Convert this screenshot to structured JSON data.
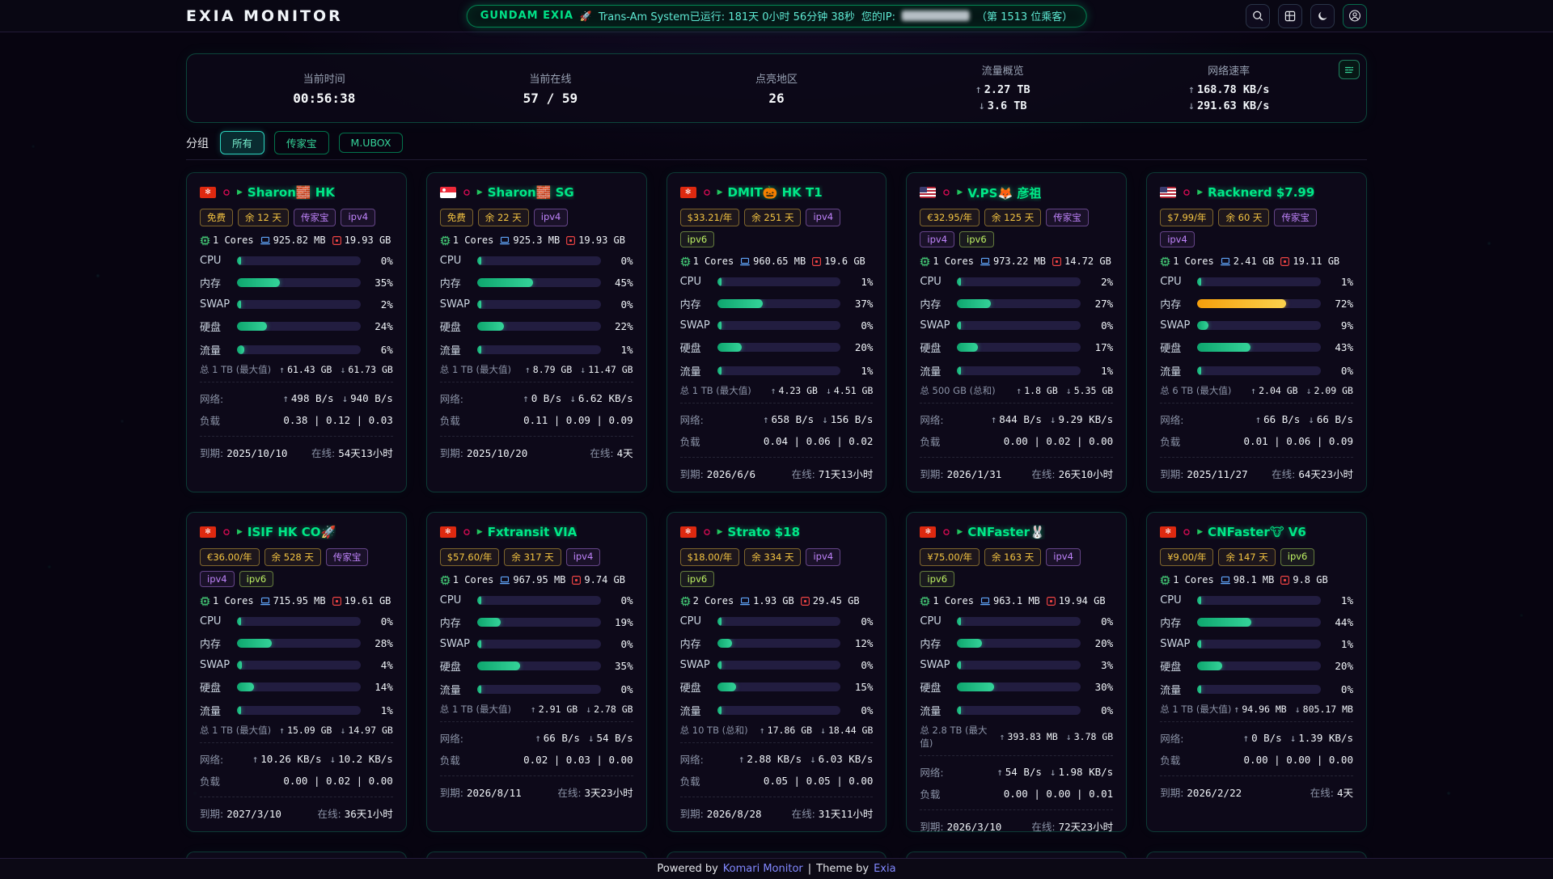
{
  "header": {
    "logo": "EXIA MONITOR",
    "banner": {
      "brand": "GUNDAM EXIA",
      "rocket": "🚀",
      "uptime": "Trans-Am System已运行: 181天 0小时 56分钟 38秒",
      "ip_label": "您的IP:",
      "visitors": "（第 1513 位乘客）"
    },
    "icons": [
      "search",
      "grid",
      "moon",
      "user"
    ]
  },
  "overview": {
    "stats": [
      {
        "label": "当前时间",
        "value": "00:56:38"
      },
      {
        "label": "当前在线",
        "value": "57 / 59"
      },
      {
        "label": "点亮地区",
        "value": "26"
      },
      {
        "label": "流量概览",
        "up": "2.27 TB",
        "down": "3.6 TB"
      },
      {
        "label": "网络速率",
        "up": "168.78 KB/s",
        "down": "291.63 KB/s"
      }
    ]
  },
  "filter": {
    "label": "分组",
    "options": [
      {
        "label": "所有",
        "active": true
      },
      {
        "label": "传家宝",
        "active": false
      },
      {
        "label": "M.UBOX",
        "active": false
      }
    ]
  },
  "card_labels": {
    "net": "网络:",
    "load": "负载",
    "expire": "到期:",
    "online": "在线:"
  },
  "servers": [
    {
      "flag": "hk",
      "os": "debian",
      "name": "Sharon🧱 HK",
      "tags": [
        {
          "text": "免费",
          "type": "yellow"
        },
        {
          "text": "余 12 天",
          "type": "yellow"
        },
        {
          "text": "传家宝",
          "type": "purple"
        },
        {
          "text": "ipv4",
          "type": "purple"
        }
      ],
      "cores": "1 Cores",
      "ram": "925.82 MB",
      "disk": "19.93 GB",
      "bars": [
        {
          "label": "CPU",
          "pct": 0,
          "color": "green"
        },
        {
          "label": "内存",
          "pct": 35,
          "color": "green"
        },
        {
          "label": "SWAP",
          "pct": 2,
          "color": "green"
        },
        {
          "label": "硬盘",
          "pct": 24,
          "color": "green"
        },
        {
          "label": "流量",
          "pct": 6,
          "color": "green"
        }
      ],
      "traffic_total": "总 1 TB (最大值)",
      "traffic_up": "61.43 GB",
      "traffic_down": "61.73 GB",
      "net_up": "498 B/s",
      "net_down": "940 B/s",
      "load": "0.38 | 0.12 | 0.03",
      "expire": "2025/10/10",
      "online": "54天13小时"
    },
    {
      "flag": "sg",
      "os": "debian",
      "name": "Sharon🧱 SG",
      "tags": [
        {
          "text": "免费",
          "type": "yellow"
        },
        {
          "text": "余 22 天",
          "type": "yellow"
        },
        {
          "text": "ipv4",
          "type": "purple"
        }
      ],
      "cores": "1 Cores",
      "ram": "925.3 MB",
      "disk": "19.93 GB",
      "bars": [
        {
          "label": "CPU",
          "pct": 0,
          "color": "green"
        },
        {
          "label": "内存",
          "pct": 45,
          "color": "green"
        },
        {
          "label": "SWAP",
          "pct": 0,
          "color": "green"
        },
        {
          "label": "硬盘",
          "pct": 22,
          "color": "green"
        },
        {
          "label": "流量",
          "pct": 1,
          "color": "green"
        }
      ],
      "traffic_total": "总 1 TB (最大值)",
      "traffic_up": "8.79 GB",
      "traffic_down": "11.47 GB",
      "net_up": "0 B/s",
      "net_down": "6.62 KB/s",
      "load": "0.11 | 0.09 | 0.09",
      "expire": "2025/10/20",
      "online": "4天"
    },
    {
      "flag": "hk",
      "os": "debian",
      "name": "DMIT🎃 HK T1",
      "tags": [
        {
          "text": "$33.21/年",
          "type": "yellow"
        },
        {
          "text": "余 251 天",
          "type": "yellow"
        },
        {
          "text": "ipv4",
          "type": "purple"
        },
        {
          "text": "ipv6",
          "type": "lime"
        }
      ],
      "cores": "1 Cores",
      "ram": "960.65 MB",
      "disk": "19.6 GB",
      "bars": [
        {
          "label": "CPU",
          "pct": 1,
          "color": "green"
        },
        {
          "label": "内存",
          "pct": 37,
          "color": "green"
        },
        {
          "label": "SWAP",
          "pct": 0,
          "color": "green"
        },
        {
          "label": "硬盘",
          "pct": 20,
          "color": "green"
        },
        {
          "label": "流量",
          "pct": 1,
          "color": "green"
        }
      ],
      "traffic_total": "总 1 TB (最大值)",
      "traffic_up": "4.23 GB",
      "traffic_down": "4.51 GB",
      "net_up": "658 B/s",
      "net_down": "156 B/s",
      "load": "0.04 | 0.06 | 0.02",
      "expire": "2026/6/6",
      "online": "71天13小时"
    },
    {
      "flag": "us",
      "os": "debian",
      "name": "V.PS🦊 彦祖",
      "tags": [
        {
          "text": "€32.95/年",
          "type": "yellow"
        },
        {
          "text": "余 125 天",
          "type": "yellow"
        },
        {
          "text": "传家宝",
          "type": "purple"
        },
        {
          "text": "ipv4",
          "type": "purple"
        },
        {
          "text": "ipv6",
          "type": "lime"
        }
      ],
      "cores": "1 Cores",
      "ram": "973.22 MB",
      "disk": "14.72 GB",
      "bars": [
        {
          "label": "CPU",
          "pct": 2,
          "color": "green"
        },
        {
          "label": "内存",
          "pct": 27,
          "color": "green"
        },
        {
          "label": "SWAP",
          "pct": 0,
          "color": "green"
        },
        {
          "label": "硬盘",
          "pct": 17,
          "color": "green"
        },
        {
          "label": "流量",
          "pct": 1,
          "color": "green"
        }
      ],
      "traffic_total": "总 500 GB (总和)",
      "traffic_up": "1.8 GB",
      "traffic_down": "5.35 GB",
      "net_up": "844 B/s",
      "net_down": "9.29 KB/s",
      "load": "0.00 | 0.02 | 0.00",
      "expire": "2026/1/31",
      "online": "26天10小时"
    },
    {
      "flag": "us",
      "os": "debian",
      "name": "Racknerd $7.99",
      "tags": [
        {
          "text": "$7.99/年",
          "type": "yellow"
        },
        {
          "text": "余 60 天",
          "type": "yellow"
        },
        {
          "text": "传家宝",
          "type": "purple"
        },
        {
          "text": "ipv4",
          "type": "purple"
        }
      ],
      "cores": "1 Cores",
      "ram": "2.41 GB",
      "disk": "19.11 GB",
      "bars": [
        {
          "label": "CPU",
          "pct": 1,
          "color": "green"
        },
        {
          "label": "内存",
          "pct": 72,
          "color": "yellow"
        },
        {
          "label": "SWAP",
          "pct": 9,
          "color": "green"
        },
        {
          "label": "硬盘",
          "pct": 43,
          "color": "green"
        },
        {
          "label": "流量",
          "pct": 0,
          "color": "green"
        }
      ],
      "traffic_total": "总 6 TB (最大值)",
      "traffic_up": "2.04 GB",
      "traffic_down": "2.09 GB",
      "net_up": "66 B/s",
      "net_down": "66 B/s",
      "load": "0.01 | 0.06 | 0.09",
      "expire": "2025/11/27",
      "online": "64天23小时"
    },
    {
      "flag": "hk",
      "os": "debian",
      "name": "ISIF HK CO🚀",
      "tags": [
        {
          "text": "€36.00/年",
          "type": "yellow"
        },
        {
          "text": "余 528 天",
          "type": "yellow"
        },
        {
          "text": "传家宝",
          "type": "purple"
        },
        {
          "text": "ipv4",
          "type": "purple"
        },
        {
          "text": "ipv6",
          "type": "lime"
        }
      ],
      "cores": "1 Cores",
      "ram": "715.95 MB",
      "disk": "19.61 GB",
      "bars": [
        {
          "label": "CPU",
          "pct": 0,
          "color": "green"
        },
        {
          "label": "内存",
          "pct": 28,
          "color": "green"
        },
        {
          "label": "SWAP",
          "pct": 4,
          "color": "green"
        },
        {
          "label": "硬盘",
          "pct": 14,
          "color": "green"
        },
        {
          "label": "流量",
          "pct": 1,
          "color": "green"
        }
      ],
      "traffic_total": "总 1 TB (最大值)",
      "traffic_up": "15.09 GB",
      "traffic_down": "14.97 GB",
      "net_up": "10.26 KB/s",
      "net_down": "10.2 KB/s",
      "load": "0.00 | 0.02 | 0.00",
      "expire": "2027/3/10",
      "online": "36天1小时"
    },
    {
      "flag": "hk",
      "os": "debian",
      "name": "Fxtransit VIA",
      "tags": [
        {
          "text": "$57.60/年",
          "type": "yellow"
        },
        {
          "text": "余 317 天",
          "type": "yellow"
        },
        {
          "text": "ipv4",
          "type": "purple"
        }
      ],
      "cores": "1 Cores",
      "ram": "967.95 MB",
      "disk": "9.74 GB",
      "bars": [
        {
          "label": "CPU",
          "pct": 0,
          "color": "green"
        },
        {
          "label": "内存",
          "pct": 19,
          "color": "green"
        },
        {
          "label": "SWAP",
          "pct": 0,
          "color": "green"
        },
        {
          "label": "硬盘",
          "pct": 35,
          "color": "green"
        },
        {
          "label": "流量",
          "pct": 0,
          "color": "green"
        }
      ],
      "traffic_total": "总 1 TB (最大值)",
      "traffic_up": "2.91 GB",
      "traffic_down": "2.78 GB",
      "net_up": "66 B/s",
      "net_down": "54 B/s",
      "load": "0.02 | 0.03 | 0.00",
      "expire": "2026/8/11",
      "online": "3天23小时"
    },
    {
      "flag": "hk",
      "os": "debian",
      "name": "Strato $18",
      "tags": [
        {
          "text": "$18.00/年",
          "type": "yellow"
        },
        {
          "text": "余 334 天",
          "type": "yellow"
        },
        {
          "text": "ipv4",
          "type": "purple"
        },
        {
          "text": "ipv6",
          "type": "lime"
        }
      ],
      "cores": "2 Cores",
      "ram": "1.93 GB",
      "disk": "29.45 GB",
      "bars": [
        {
          "label": "CPU",
          "pct": 0,
          "color": "green"
        },
        {
          "label": "内存",
          "pct": 12,
          "color": "green"
        },
        {
          "label": "SWAP",
          "pct": 0,
          "color": "green"
        },
        {
          "label": "硬盘",
          "pct": 15,
          "color": "green"
        },
        {
          "label": "流量",
          "pct": 0,
          "color": "green"
        }
      ],
      "traffic_total": "总 10 TB (总和)",
      "traffic_up": "17.86 GB",
      "traffic_down": "18.44 GB",
      "net_up": "2.88 KB/s",
      "net_down": "6.03 KB/s",
      "load": "0.05 | 0.05 | 0.00",
      "expire": "2026/8/28",
      "online": "31天11小时"
    },
    {
      "flag": "hk",
      "os": "debian",
      "name": "CNFaster🐰",
      "tags": [
        {
          "text": "¥75.00/年",
          "type": "yellow"
        },
        {
          "text": "余 163 天",
          "type": "yellow"
        },
        {
          "text": "ipv4",
          "type": "purple"
        },
        {
          "text": "ipv6",
          "type": "lime"
        }
      ],
      "cores": "1 Cores",
      "ram": "963.1 MB",
      "disk": "19.94 GB",
      "bars": [
        {
          "label": "CPU",
          "pct": 0,
          "color": "green"
        },
        {
          "label": "内存",
          "pct": 20,
          "color": "green"
        },
        {
          "label": "SWAP",
          "pct": 3,
          "color": "green"
        },
        {
          "label": "硬盘",
          "pct": 30,
          "color": "green"
        },
        {
          "label": "流量",
          "pct": 0,
          "color": "green"
        }
      ],
      "traffic_total": "总 2.8 TB (最大值)",
      "traffic_up": "393.83 MB",
      "traffic_down": "3.78 GB",
      "net_up": "54 B/s",
      "net_down": "1.98 KB/s",
      "load": "0.00 | 0.00 | 0.01",
      "expire": "2026/3/10",
      "online": "72天23小时"
    },
    {
      "flag": "hk",
      "os": "debian",
      "name": "CNFaster🐮 V6",
      "tags": [
        {
          "text": "¥9.00/年",
          "type": "yellow"
        },
        {
          "text": "余 147 天",
          "type": "yellow"
        },
        {
          "text": "ipv6",
          "type": "lime"
        }
      ],
      "cores": "1 Cores",
      "ram": "98.1 MB",
      "disk": "9.8 GB",
      "bars": [
        {
          "label": "CPU",
          "pct": 1,
          "color": "green"
        },
        {
          "label": "内存",
          "pct": 44,
          "color": "green"
        },
        {
          "label": "SWAP",
          "pct": 1,
          "color": "green"
        },
        {
          "label": "硬盘",
          "pct": 20,
          "color": "green"
        },
        {
          "label": "流量",
          "pct": 0,
          "color": "green"
        }
      ],
      "traffic_total": "总 1 TB (最大值)",
      "traffic_up": "94.96 MB",
      "traffic_down": "805.17 MB",
      "net_up": "0 B/s",
      "net_down": "1.39 KB/s",
      "load": "0.00 | 0.00 | 0.00",
      "expire": "2026/2/22",
      "online": "4天"
    }
  ],
  "footer": {
    "powered_prefix": "Powered by",
    "powered_link": "Komari Monitor",
    "separator": "|",
    "theme_prefix": "Theme by",
    "theme_link": "Exia"
  }
}
